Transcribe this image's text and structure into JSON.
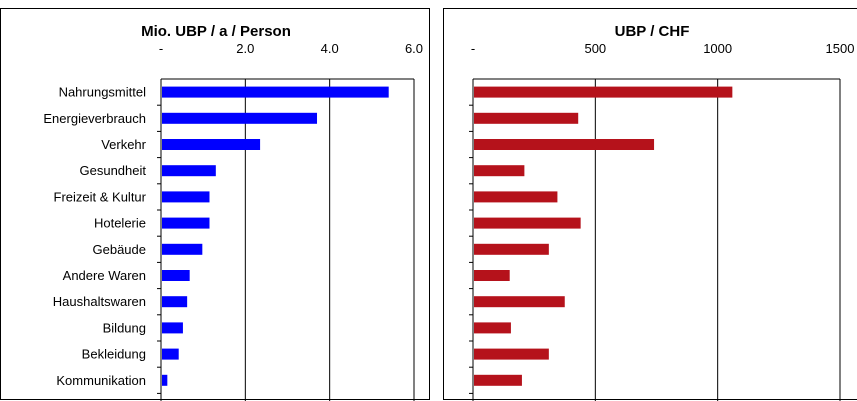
{
  "chart_data": [
    {
      "type": "bar",
      "orientation": "horizontal",
      "title": "Mio. UBP / a / Person",
      "categories": [
        "Nahrungsmittel",
        "Energieverbrauch",
        "Verkehr",
        "Gesundheit",
        "Freizeit & Kultur",
        "Hotelerie",
        "Gebäude",
        "Andere Waren",
        "Haushaltswaren",
        "Bildung",
        "Bekleidung",
        "Kommunikation"
      ],
      "values": [
        5.4,
        3.7,
        2.35,
        1.3,
        1.15,
        1.15,
        0.98,
        0.68,
        0.62,
        0.52,
        0.42,
        0.15
      ],
      "xlim": [
        0,
        6.0
      ],
      "tick_values": [
        0,
        2.0,
        4.0,
        6.0
      ],
      "tick_labels": [
        "-",
        "2.0",
        "4.0",
        "6.0"
      ],
      "color": "#0000ff",
      "grid": true
    },
    {
      "type": "bar",
      "orientation": "horizontal",
      "title": "UBP / CHF",
      "categories": [
        "Nahrungsmittel",
        "Energieverbrauch",
        "Verkehr",
        "Gesundheit",
        "Freizeit & Kultur",
        "Hotelerie",
        "Gebäude",
        "Andere Waren",
        "Haushaltswaren",
        "Bildung",
        "Bekleidung",
        "Kommunikation"
      ],
      "values": [
        1060,
        430,
        740,
        210,
        345,
        440,
        310,
        150,
        375,
        155,
        310,
        200
      ],
      "xlim": [
        0,
        1500
      ],
      "tick_values": [
        0,
        500,
        1000,
        1500
      ],
      "tick_labels": [
        "-",
        "500",
        "1000",
        "1500"
      ],
      "color": "#b5121b",
      "grid": true
    }
  ]
}
